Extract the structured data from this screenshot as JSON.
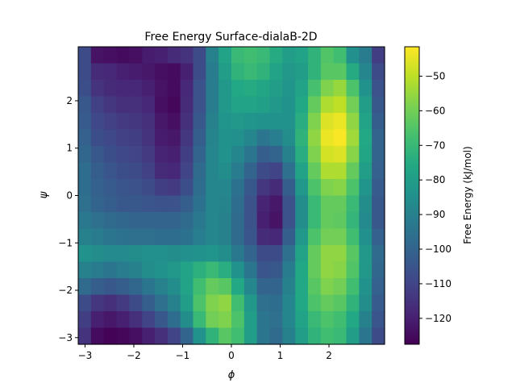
{
  "chart_data": {
    "type": "heatmap",
    "title": "Free Energy Surface-dialaB-2D",
    "xlabel": "ϕ",
    "ylabel": "ψ",
    "xlim": [
      -3.14,
      3.14
    ],
    "ylim": [
      -3.14,
      3.14
    ],
    "x_ticks": [
      -3,
      -2,
      -1,
      0,
      1,
      2
    ],
    "x_tick_labels": [
      "−3",
      "−2",
      "−1",
      "0",
      "1",
      "2"
    ],
    "y_ticks": [
      -3,
      -2,
      -1,
      0,
      1,
      2
    ],
    "y_tick_labels": [
      "−3",
      "−2",
      "−1",
      "0",
      "1",
      "2"
    ],
    "colorbar": {
      "label": "Free Energy (kJ/mol)",
      "range": [
        -127.5,
        -41.5
      ],
      "ticks": [
        -120,
        -110,
        -100,
        -90,
        -80,
        -70,
        -60,
        -50
      ],
      "tick_labels": [
        "−120",
        "−110",
        "−100",
        "−90",
        "−80",
        "−70",
        "−60",
        "−50"
      ],
      "colormap": "viridis"
    },
    "grid_note": "24x18 cells, rows ordered top (psi=+3.14) to bottom (psi=-3.14), columns phi=-3.14..3.14",
    "values": [
      [
        -108,
        -123,
        -124,
        -125,
        -124,
        -121,
        -120,
        -117,
        -115,
        -108,
        -90,
        -78,
        -70,
        -68,
        -70,
        -75,
        -80,
        -78,
        -72,
        -65,
        -68,
        -85,
        -92,
        -112
      ],
      [
        -108,
        -117,
        -118,
        -120,
        -121,
        -122,
        -124,
        -125,
        -120,
        -108,
        -92,
        -80,
        -72,
        -70,
        -72,
        -78,
        -82,
        -80,
        -72,
        -64,
        -64,
        -75,
        -88,
        -108
      ],
      [
        -107,
        -115,
        -117,
        -118,
        -118,
        -120,
        -123,
        -125,
        -118,
        -106,
        -92,
        -82,
        -76,
        -75,
        -77,
        -80,
        -83,
        -78,
        -67,
        -58,
        -55,
        -66,
        -84,
        -106
      ],
      [
        -104,
        -111,
        -114,
        -116,
        -116,
        -118,
        -124,
        -126,
        -117,
        -106,
        -92,
        -82,
        -78,
        -78,
        -79,
        -82,
        -84,
        -76,
        -62,
        -52,
        -50,
        -60,
        -80,
        -104
      ],
      [
        -103,
        -109,
        -111,
        -113,
        -114,
        -116,
        -122,
        -124,
        -116,
        -104,
        -90,
        -83,
        -82,
        -83,
        -84,
        -84,
        -84,
        -74,
        -58,
        -46,
        -44,
        -56,
        -78,
        -102
      ],
      [
        -101,
        -107,
        -109,
        -111,
        -112,
        -115,
        -121,
        -122,
        -114,
        -102,
        -89,
        -84,
        -85,
        -88,
        -94,
        -91,
        -86,
        -72,
        -56,
        -44,
        -42,
        -54,
        -76,
        -100
      ],
      [
        -99,
        -104,
        -107,
        -109,
        -110,
        -113,
        -119,
        -120,
        -112,
        -100,
        -88,
        -84,
        -88,
        -94,
        -102,
        -100,
        -90,
        -74,
        -58,
        -47,
        -46,
        -57,
        -77,
        -100
      ],
      [
        -97,
        -102,
        -105,
        -107,
        -108,
        -111,
        -117,
        -118,
        -110,
        -98,
        -88,
        -86,
        -92,
        -100,
        -108,
        -110,
        -96,
        -78,
        -62,
        -52,
        -52,
        -62,
        -80,
        -101
      ],
      [
        -97,
        -101,
        -103,
        -105,
        -106,
        -108,
        -112,
        -113,
        -107,
        -97,
        -88,
        -88,
        -95,
        -104,
        -114,
        -117,
        -102,
        -82,
        -66,
        -58,
        -57,
        -66,
        -83,
        -103
      ],
      [
        -96,
        -100,
        -102,
        -104,
        -104,
        -105,
        -106,
        -106,
        -102,
        -95,
        -88,
        -89,
        -97,
        -106,
        -119,
        -122,
        -106,
        -86,
        -70,
        -62,
        -62,
        -70,
        -86,
        -104
      ],
      [
        -93,
        -96,
        -98,
        -99,
        -100,
        -100,
        -100,
        -100,
        -98,
        -93,
        -88,
        -90,
        -98,
        -106,
        -120,
        -123,
        -106,
        -86,
        -70,
        -62,
        -63,
        -71,
        -87,
        -104
      ],
      [
        -90,
        -92,
        -94,
        -95,
        -96,
        -96,
        -97,
        -97,
        -95,
        -91,
        -88,
        -90,
        -98,
        -105,
        -117,
        -118,
        -102,
        -82,
        -66,
        -60,
        -60,
        -68,
        -85,
        -101
      ],
      [
        -84,
        -86,
        -87,
        -87,
        -86,
        -85,
        -85,
        -86,
        -85,
        -84,
        -83,
        -86,
        -93,
        -100,
        -108,
        -108,
        -96,
        -78,
        -62,
        -56,
        -56,
        -64,
        -82,
        -98
      ],
      [
        -90,
        -92,
        -94,
        -92,
        -90,
        -86,
        -84,
        -82,
        -78,
        -73,
        -70,
        -74,
        -84,
        -94,
        -105,
        -104,
        -92,
        -76,
        -62,
        -56,
        -57,
        -65,
        -82,
        -99
      ],
      [
        -98,
        -102,
        -104,
        -102,
        -99,
        -94,
        -90,
        -86,
        -78,
        -68,
        -62,
        -64,
        -76,
        -88,
        -100,
        -100,
        -90,
        -76,
        -64,
        -58,
        -60,
        -68,
        -84,
        -101
      ],
      [
        -108,
        -114,
        -116,
        -113,
        -108,
        -102,
        -96,
        -90,
        -80,
        -66,
        -58,
        -56,
        -68,
        -82,
        -96,
        -97,
        -88,
        -76,
        -66,
        -62,
        -64,
        -72,
        -86,
        -103
      ],
      [
        -112,
        -120,
        -122,
        -120,
        -116,
        -110,
        -104,
        -97,
        -86,
        -70,
        -60,
        -58,
        -66,
        -80,
        -94,
        -96,
        -88,
        -78,
        -70,
        -66,
        -68,
        -76,
        -90,
        -105
      ],
      [
        -115,
        -125,
        -127,
        -126,
        -124,
        -120,
        -116,
        -110,
        -100,
        -84,
        -72,
        -64,
        -68,
        -80,
        -94,
        -98,
        -90,
        -80,
        -72,
        -68,
        -70,
        -80,
        -94,
        -108
      ]
    ]
  }
}
